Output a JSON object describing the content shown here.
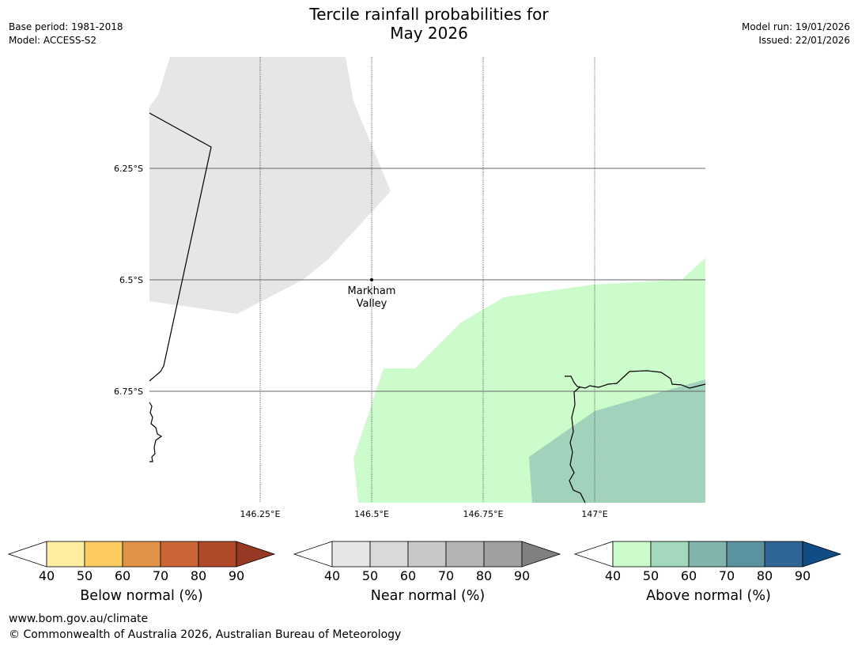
{
  "title": {
    "line1": "Tercile rainfall probabilities for",
    "line2": "May 2026"
  },
  "meta_left": {
    "base_period": "Base period: 1981-2018",
    "model": "Model: ACCESS-S2"
  },
  "meta_right": {
    "model_run": "Model run: 19/01/2026",
    "issued": "Issued: 22/01/2026"
  },
  "map": {
    "lat_labels": [
      "6.25°S",
      "6.5°S",
      "6.75°S"
    ],
    "lon_labels": [
      "146.25°E",
      "146.5°E",
      "146.75°E",
      "147°E"
    ],
    "place": {
      "line1": "Markham",
      "line2": "Valley"
    },
    "colors": {
      "near_normal_region": "#e6e6e6",
      "above_normal_40_50": "#ccfccc",
      "above_normal_50_60": "#a0d2bc"
    }
  },
  "colorbars": [
    {
      "label": "Below normal (%)",
      "ticks": [
        "40",
        "50",
        "60",
        "70",
        "80",
        "90"
      ],
      "colors": [
        "#ffeda0",
        "#fecb63",
        "#e2934a",
        "#cd6636",
        "#b04a2b",
        "#963924"
      ]
    },
    {
      "label": "Near normal (%)",
      "ticks": [
        "40",
        "50",
        "60",
        "70",
        "80",
        "90"
      ],
      "colors": [
        "#e6e6e6",
        "#d9d9d9",
        "#c8c8c8",
        "#b4b4b4",
        "#a0a0a0",
        "#808080"
      ]
    },
    {
      "label": "Above normal (%)",
      "ticks": [
        "40",
        "50",
        "60",
        "70",
        "80",
        "90"
      ],
      "colors": [
        "#ccfccc",
        "#a3d8bd",
        "#80b4ad",
        "#5a92a0",
        "#2f6696",
        "#124c86"
      ]
    }
  ],
  "footer": {
    "website": "www.bom.gov.au/climate",
    "copyright": "© Commonwealth of Australia 2026, Australian Bureau of Meteorology"
  }
}
